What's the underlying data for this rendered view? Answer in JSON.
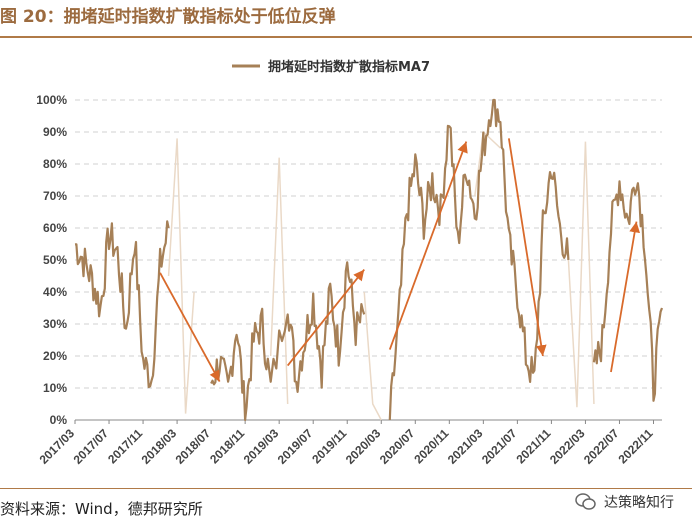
{
  "figure": {
    "label": "图 20：拥堵延时指数扩散指标处于低位反弹",
    "source": "资料来源：Wind，德邦研究所",
    "watermark": "达策略知行"
  },
  "colors": {
    "series": "#a68057",
    "faint": "#ead9c7",
    "arrow": "#d96a2b",
    "grid": "#d0d0d0"
  },
  "chart_data": {
    "type": "line",
    "title": "",
    "legend": [
      "拥堵延时指数扩散指标MA7"
    ],
    "legend_position": "top-center",
    "grid": true,
    "ylim": [
      0,
      100
    ],
    "y_unit": "%",
    "yticks": [
      "0%",
      "10%",
      "20%",
      "30%",
      "40%",
      "50%",
      "60%",
      "70%",
      "80%",
      "90%",
      "100%"
    ],
    "xticks": [
      "2017/03",
      "2017/07",
      "2017/11",
      "2018/03",
      "2018/07",
      "2018/11",
      "2019/03",
      "2019/07",
      "2019/11",
      "2020/03",
      "2020/07",
      "2020/11",
      "2021/03",
      "2021/07",
      "2021/11",
      "2022/03",
      "2022/07",
      "2022/11"
    ],
    "series": [
      {
        "name": "拥堵延时指数扩散指标MA7",
        "points": [
          [
            "2017/03",
            55
          ],
          [
            "2017/04",
            50
          ],
          [
            "2017/05",
            44
          ],
          [
            "2017/06",
            35
          ],
          [
            "2017/07",
            58
          ],
          [
            "2017/08",
            52
          ],
          [
            "2017/09",
            28
          ],
          [
            "2017/10",
            57
          ],
          [
            "2017/11",
            18
          ],
          [
            "2017/12",
            13
          ],
          [
            "2018/01",
            48
          ],
          [
            "2018/02",
            60
          ],
          [
            "2018/07",
            12
          ],
          [
            "2018/08",
            18
          ],
          [
            "2018/09",
            9
          ],
          [
            "2018/10",
            30
          ],
          [
            "2018/11",
            2
          ],
          [
            "2018/12",
            25
          ],
          [
            "2019/01",
            30
          ],
          [
            "2019/02",
            10
          ],
          [
            "2019/04",
            38
          ],
          [
            "2019/05",
            12
          ],
          [
            "2019/06",
            25
          ],
          [
            "2019/07",
            38
          ],
          [
            "2019/08",
            16
          ],
          [
            "2019/09",
            40
          ],
          [
            "2019/10",
            22
          ],
          [
            "2019/11",
            50
          ],
          [
            "2019/12",
            28
          ],
          [
            "2020/01",
            33
          ],
          [
            "2020/04",
            0
          ],
          [
            "2020/05",
            30
          ],
          [
            "2020/06",
            65
          ],
          [
            "2020/07",
            80
          ],
          [
            "2020/08",
            62
          ],
          [
            "2020/09",
            75
          ],
          [
            "2020/10",
            65
          ],
          [
            "2020/11",
            95
          ],
          [
            "2020/12",
            55
          ],
          [
            "2021/01",
            80
          ],
          [
            "2021/02",
            65
          ],
          [
            "2021/03",
            85
          ],
          [
            "2021/04",
            100
          ],
          [
            "2021/05",
            95
          ],
          [
            "2021/06",
            55
          ],
          [
            "2021/07",
            40
          ],
          [
            "2021/08",
            20
          ],
          [
            "2021/09",
            12
          ],
          [
            "2021/10",
            60
          ],
          [
            "2021/11",
            80
          ],
          [
            "2021/12",
            60
          ],
          [
            "2022/01",
            50
          ],
          [
            "2022/04",
            15
          ],
          [
            "2022/05",
            25
          ],
          [
            "2022/06",
            60
          ],
          [
            "2022/07",
            75
          ],
          [
            "2022/08",
            62
          ],
          [
            "2022/09",
            78
          ],
          [
            "2022/10",
            55
          ],
          [
            "2022/11",
            10
          ],
          [
            "2022/12",
            35
          ]
        ]
      }
    ]
  }
}
